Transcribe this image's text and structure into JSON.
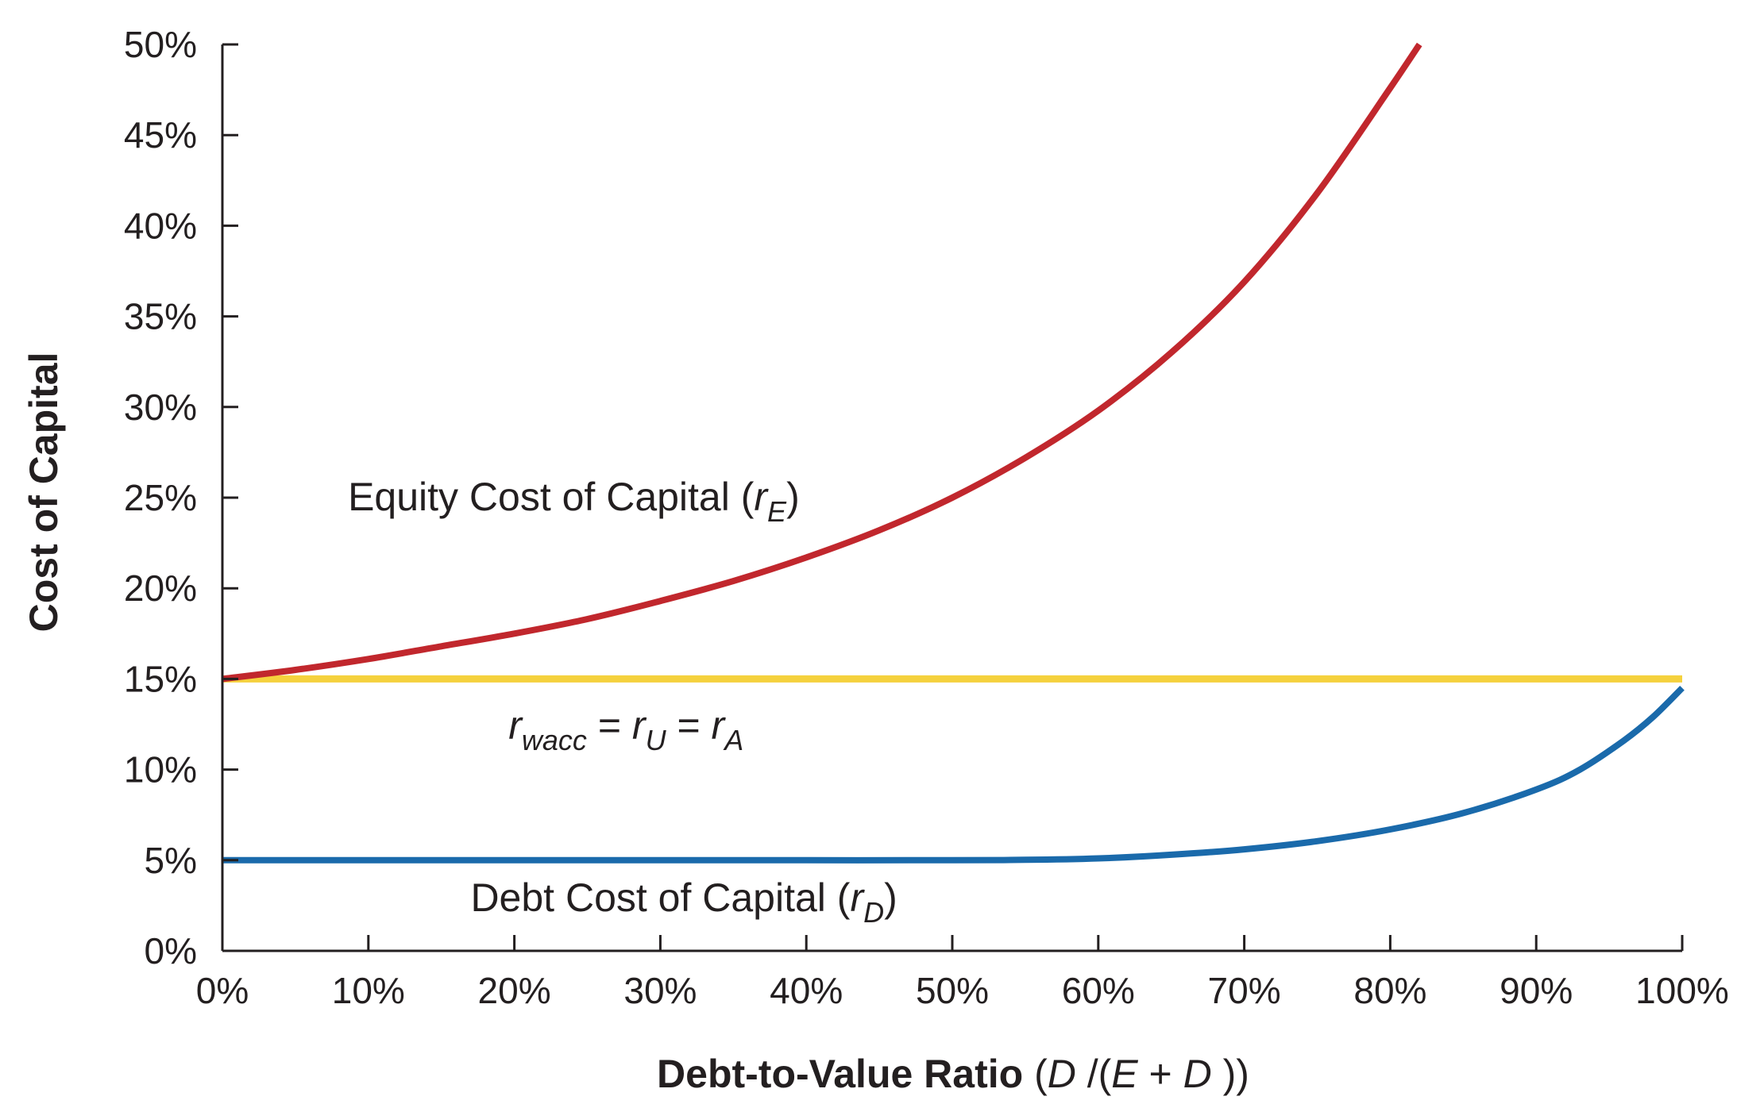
{
  "chart_data": {
    "type": "line",
    "xlabel": {
      "bold": "Debt-to-Value Ratio",
      "expr_open": " (",
      "D1": "D",
      "mid": " /(",
      "E": "E",
      "plus": " + ",
      "D2": "D",
      "close": " ))"
    },
    "ylabel": "Cost of Capital",
    "xlim": [
      0,
      100
    ],
    "ylim": [
      0,
      50
    ],
    "x_ticks": [
      0,
      10,
      20,
      30,
      40,
      50,
      60,
      70,
      80,
      90,
      100
    ],
    "x_tick_labels": [
      "0%",
      "10%",
      "20%",
      "30%",
      "40%",
      "50%",
      "60%",
      "70%",
      "80%",
      "90%",
      "100%"
    ],
    "y_ticks": [
      0,
      5,
      10,
      15,
      20,
      25,
      30,
      35,
      40,
      45,
      50
    ],
    "y_tick_labels": [
      "0%",
      "5%",
      "10%",
      "15%",
      "20%",
      "25%",
      "30%",
      "35%",
      "40%",
      "45%",
      "50%"
    ],
    "grid": false,
    "series": [
      {
        "key": "equity",
        "color": "#c1272d",
        "x": [
          0,
          5,
          10,
          15,
          20,
          25,
          30,
          35,
          40,
          45,
          50,
          55,
          60,
          65,
          70,
          75,
          80,
          82
        ],
        "y": [
          15.0,
          15.5,
          16.1,
          16.8,
          17.5,
          18.3,
          19.3,
          20.4,
          21.7,
          23.2,
          25.0,
          27.2,
          29.8,
          33.0,
          36.9,
          41.8,
          47.6,
          50.0
        ]
      },
      {
        "key": "wacc",
        "color": "#f5d13d",
        "x": [
          0,
          100
        ],
        "y": [
          15.0,
          15.0
        ]
      },
      {
        "key": "debt",
        "color": "#1a6aab",
        "x": [
          0,
          10,
          20,
          30,
          40,
          50,
          55,
          60,
          65,
          70,
          75,
          80,
          85,
          90,
          93,
          96,
          98,
          100
        ],
        "y": [
          5.0,
          5.0,
          5.0,
          5.0,
          5.0,
          5.0,
          5.02,
          5.1,
          5.3,
          5.6,
          6.05,
          6.7,
          7.6,
          8.9,
          10.0,
          11.6,
          12.9,
          14.5
        ]
      }
    ],
    "annotations": {
      "equity": {
        "text": "Equity Cost of Capital (",
        "sym": "r",
        "sub": "E",
        "close": ")",
        "at": [
          8.6,
          24.3
        ]
      },
      "wacc": {
        "r1": "r",
        "s1": "wacc",
        "eq1": " = ",
        "r2": "r",
        "s2": "U",
        "eq2": " = ",
        "r3": "r",
        "s3": "A",
        "at": [
          19.6,
          11.7
        ]
      },
      "debt": {
        "text": "Debt Cost of Capital (",
        "sym": "r",
        "sub": "D",
        "close": ")",
        "at": [
          17.0,
          2.2
        ]
      }
    }
  }
}
